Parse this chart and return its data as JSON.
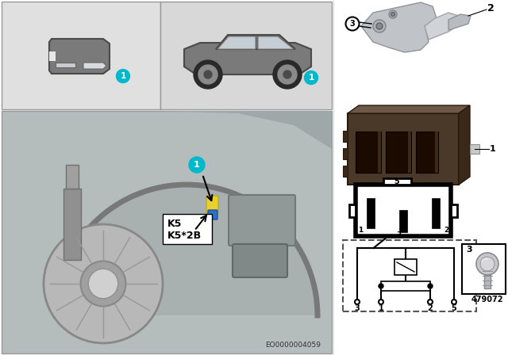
{
  "bg_color": "#ffffff",
  "top_left_bg": "#e2e2e2",
  "top_right_bg": "#d5d5d5",
  "bottom_panel_bg": "#b8bebe",
  "cyan_color": "#00b8cc",
  "eo_number": "EO0000004059",
  "label_k5": "K5",
  "label_k5_2b": "K5*2B",
  "part_number": "479072",
  "pin_labels_bottom": [
    "3",
    "1",
    "2",
    "5"
  ],
  "relay_dark": "#4a3828",
  "relay_mid": "#5c4838",
  "relay_light": "#6e5848"
}
